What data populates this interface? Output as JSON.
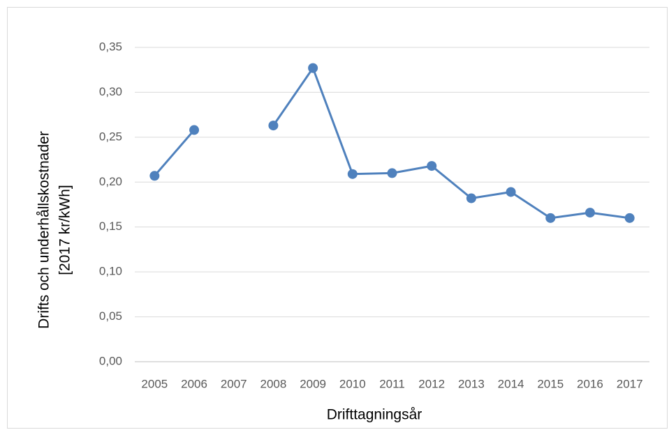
{
  "chart_data": {
    "type": "line",
    "x_label": "Drifttagningsår",
    "y_label": [
      "Drifts och underhållskostnader",
      "[2017 kr/kWh]"
    ],
    "categories": [
      "2005",
      "2006",
      "2007",
      "2008",
      "2009",
      "2010",
      "2011",
      "2012",
      "2013",
      "2014",
      "2015",
      "2016",
      "2017"
    ],
    "values": [
      0.207,
      0.258,
      null,
      0.263,
      0.327,
      0.209,
      0.21,
      0.218,
      0.182,
      0.189,
      0.16,
      0.166,
      0.16
    ],
    "color": "#4f81bd",
    "ylim": [
      0,
      0.35
    ],
    "yticks": [
      {
        "value": 0,
        "label": "0,00"
      },
      {
        "value": 0.05,
        "label": "0,05"
      },
      {
        "value": 0.1,
        "label": "0,10"
      },
      {
        "value": 0.15,
        "label": "0,15"
      },
      {
        "value": 0.2,
        "label": "0,20"
      },
      {
        "value": 0.25,
        "label": "0,25"
      },
      {
        "value": 0.3,
        "label": "0,30"
      },
      {
        "value": 0.35,
        "label": "0,35"
      }
    ],
    "grid": true
  }
}
